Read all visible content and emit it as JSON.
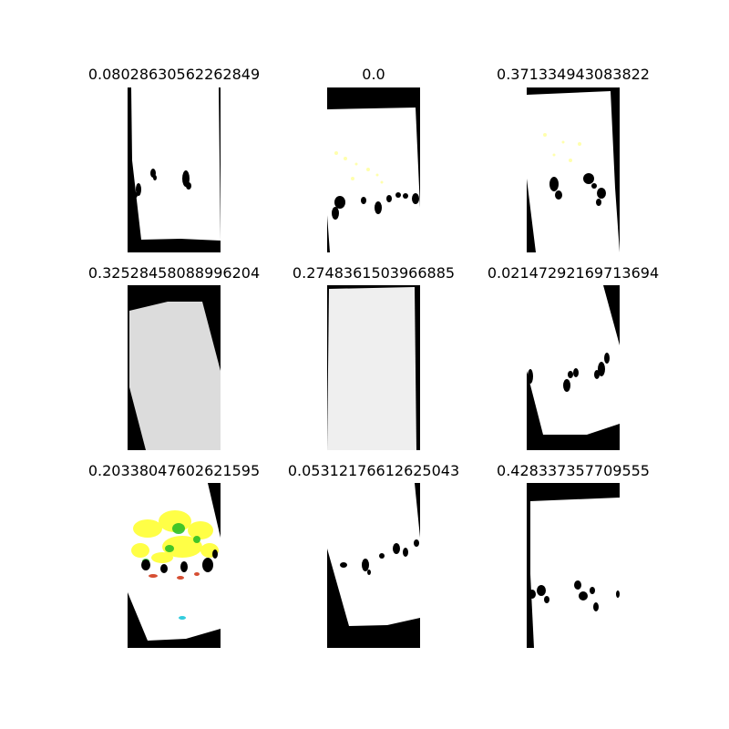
{
  "panels": [
    {
      "title": "0.08028630562262849"
    },
    {
      "title": "0.0"
    },
    {
      "title": "0.371334943083822"
    },
    {
      "title": "0.32528458088996204"
    },
    {
      "title": "0.2748361503966885"
    },
    {
      "title": "0.02147292169713694"
    },
    {
      "title": "0.20338047602621595"
    },
    {
      "title": "0.05312176612625043"
    },
    {
      "title": "0.428337357709555"
    }
  ],
  "colors": {
    "background": "#ffffff",
    "mask": "#000000",
    "region_light": "#ffffff",
    "region_gray_a": "#dcdcdc",
    "region_gray_b": "#efefef",
    "highlight_yellow": "#ffff33",
    "highlight_green": "#22bb22",
    "highlight_red": "#cc2200",
    "highlight_cyan": "#33ccdd"
  }
}
